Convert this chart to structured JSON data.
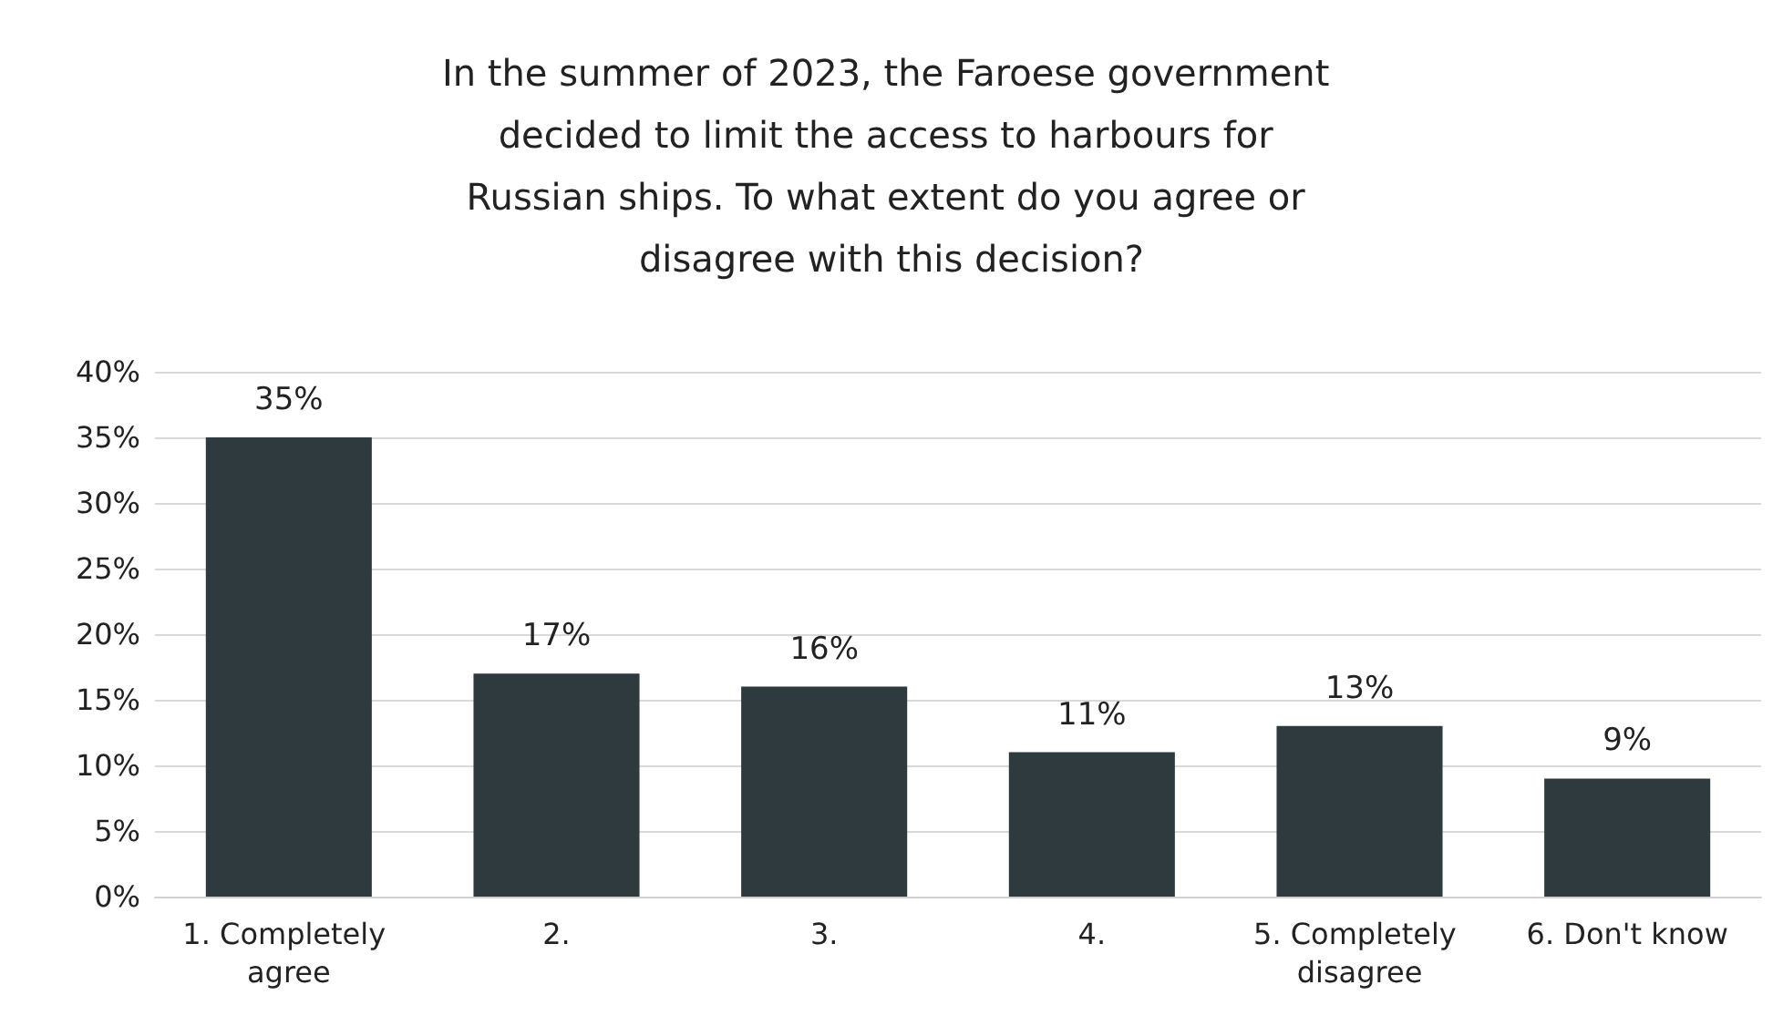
{
  "chart_data": {
    "type": "bar",
    "title": "In the summer of 2023, the Faroese government decided to limit the access to harbours for Russian ships. To what extent do you agree or disagree with this decision?",
    "categories": [
      "1. Completely agree",
      "2.",
      "3.",
      "4.",
      "5. Completely disagree",
      "6. Don't know"
    ],
    "values": [
      35,
      17,
      16,
      11,
      13,
      9
    ],
    "color": "#2f3a3f",
    "ylim": [
      0,
      40
    ],
    "yticks": [
      {
        "value": 0,
        "label": "0%"
      },
      {
        "value": 5,
        "label": "5%"
      },
      {
        "value": 10,
        "label": "10%"
      },
      {
        "value": 15,
        "label": "15%"
      },
      {
        "value": 20,
        "label": "20%"
      },
      {
        "value": 25,
        "label": "25%"
      },
      {
        "value": 30,
        "label": "30%"
      },
      {
        "value": 35,
        "label": "35%"
      },
      {
        "value": 40,
        "label": "40%"
      }
    ],
    "value_labels": [
      "35%",
      "17%",
      "16%",
      "11%",
      "13%",
      "9%"
    ],
    "grid": "y"
  }
}
